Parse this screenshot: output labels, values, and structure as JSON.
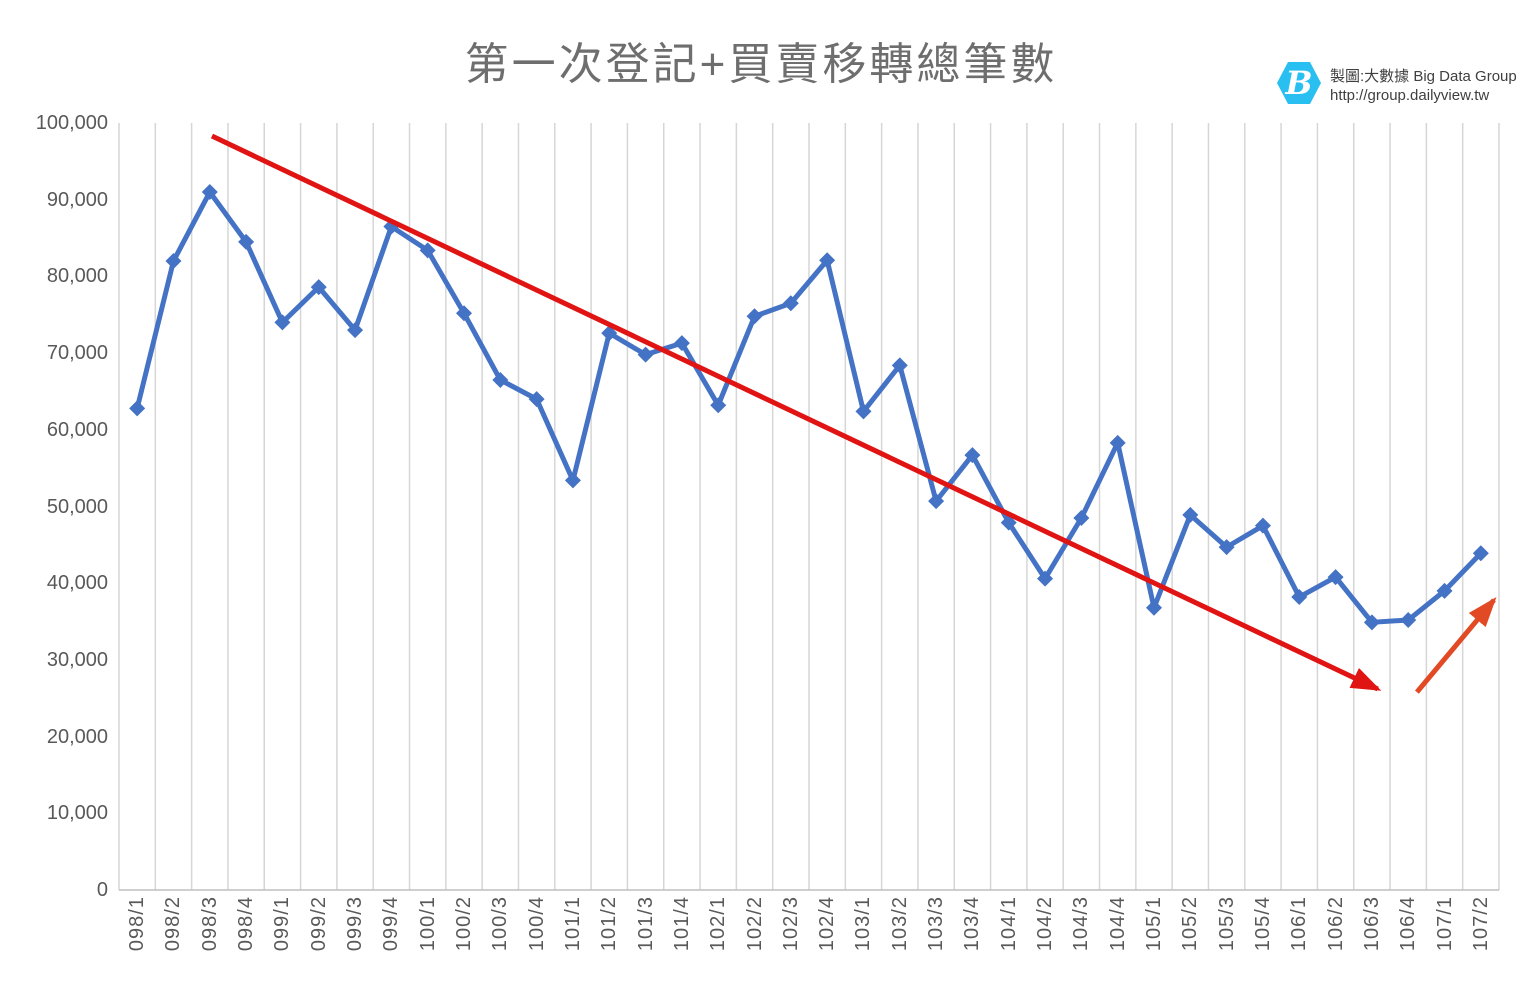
{
  "header": {
    "title": "第一次登記+買賣移轉總筆數",
    "logo": {
      "icon": "hexagon-b-logo",
      "icon_color": "#29bff1",
      "credit_line": "製圖:大數據 Big Data Group",
      "url_line": "http://group.dailyview.tw"
    }
  },
  "chart_data": {
    "type": "line",
    "title": "第一次登記+買賣移轉總筆數",
    "legend": "none",
    "grid": "vertical-only",
    "categories": [
      "098/1",
      "098/2",
      "098/3",
      "098/4",
      "099/1",
      "099/2",
      "099/3",
      "099/4",
      "100/1",
      "100/2",
      "100/3",
      "100/4",
      "101/1",
      "101/2",
      "101/3",
      "101/4",
      "102/1",
      "102/2",
      "102/3",
      "102/4",
      "103/1",
      "103/2",
      "103/3",
      "103/4",
      "104/1",
      "104/2",
      "104/3",
      "104/4",
      "105/1",
      "105/2",
      "105/3",
      "105/4",
      "106/1",
      "106/2",
      "106/3",
      "106/4",
      "107/1",
      "107/2"
    ],
    "series": [
      {
        "name": "第一次登記+買賣移轉總筆數",
        "color": "#4472c4",
        "marker": "diamond",
        "values": [
          62800,
          82000,
          91000,
          84500,
          74000,
          78600,
          73000,
          86500,
          83400,
          75200,
          66500,
          64000,
          53400,
          72600,
          69800,
          71300,
          63200,
          74800,
          76500,
          82100,
          62400,
          68400,
          50700,
          56700,
          47900,
          40600,
          48500,
          58300,
          36800,
          48900,
          44700,
          47500,
          38200,
          40800,
          34900,
          35200,
          39000,
          43900
        ]
      }
    ],
    "ylim": [
      0,
      100000
    ],
    "ytick_step": 10000,
    "ytick_labels": [
      "0",
      "10,000",
      "20,000",
      "30,000",
      "40,000",
      "50,000",
      "60,000",
      "70,000",
      "80,000",
      "90,000",
      "100,000"
    ],
    "xlabel": "",
    "ylabel": "",
    "gridline_color": "#d6d6d6",
    "axis_line_color": "#bfbfbf",
    "annotations": [
      {
        "name": "downtrend-arrow",
        "type": "arrow",
        "color": "#e11414",
        "x1_grid": 2.56,
        "y1": 98300,
        "x2_grid": 34.66,
        "y2": 26200
      },
      {
        "name": "uptrend-arrow",
        "type": "arrow",
        "color": "#e24a26",
        "x1_grid": 35.74,
        "y1": 25800,
        "x2_grid": 37.86,
        "y2": 37800
      }
    ]
  }
}
